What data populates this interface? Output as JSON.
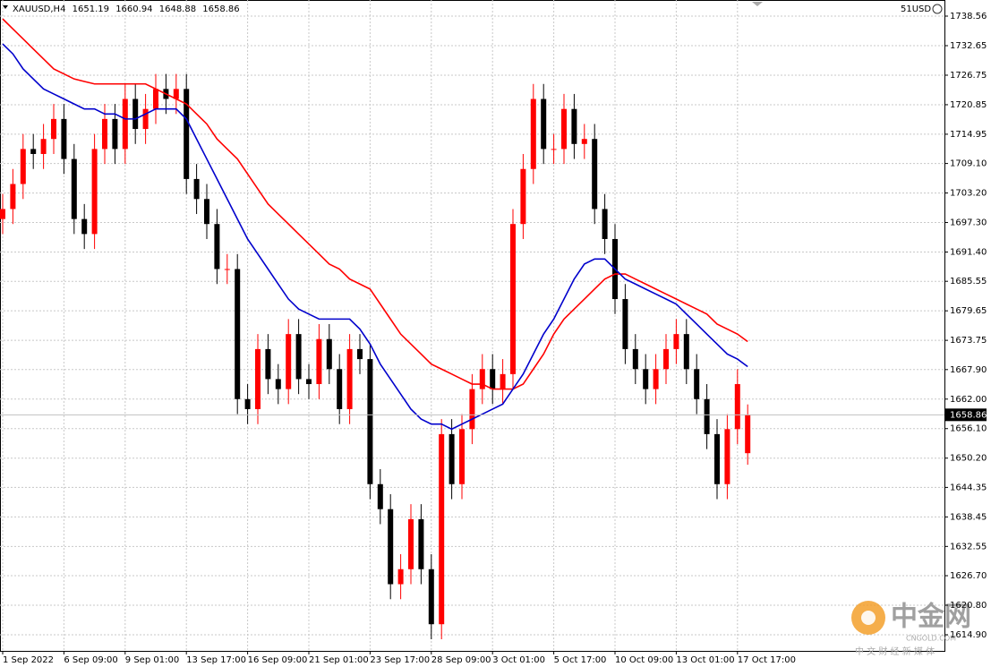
{
  "chart_data": {
    "type": "candlestick",
    "symbol": "XAUUSD,H4",
    "account": "51USD",
    "categories": [
      "1 Sep 2022",
      null,
      null,
      null,
      null,
      null,
      "6 Sep 09:00",
      null,
      null,
      null,
      null,
      null,
      "9 Sep 01:00",
      null,
      null,
      null,
      null,
      null,
      "13 Sep 17:00",
      null,
      null,
      null,
      null,
      null,
      "16 Sep 09:00",
      null,
      null,
      null,
      null,
      null,
      "21 Sep 01:00",
      null,
      null,
      null,
      null,
      null,
      "23 Sep 17:00",
      null,
      null,
      null,
      null,
      null,
      "28 Sep 09:00",
      null,
      null,
      null,
      null,
      null,
      "3 Oct 01:00",
      null,
      null,
      null,
      null,
      null,
      "5 Oct 17:00",
      null,
      null,
      null,
      null,
      null,
      "10 Oct 09:00",
      null,
      null,
      null,
      null,
      null,
      "13 Oct 01:00",
      null,
      null,
      null,
      null,
      null,
      "17 Oct 17:00",
      null
    ],
    "open": [
      1698,
      1700,
      1705,
      1712,
      1711,
      1714,
      1718,
      1710,
      1698,
      1695,
      1712,
      1718,
      1712,
      1722,
      1716,
      1720,
      1724,
      1722,
      1724,
      1706,
      1702,
      1697,
      1688,
      1688,
      1662,
      1660,
      1672,
      1666,
      1664,
      1675,
      1666,
      1665,
      1674,
      1668,
      1660,
      1672,
      1670,
      1645,
      1640,
      1625,
      1628,
      1638,
      1628,
      1617,
      1655,
      1645,
      1656,
      1664,
      1668,
      1664,
      1667,
      1697,
      1708,
      1722,
      1712,
      1712,
      1720,
      1713,
      1714,
      1700,
      1694,
      1682,
      1672,
      1668,
      1664,
      1668,
      1672,
      1675,
      1668,
      1662,
      1655,
      1645,
      1656,
      1651.19
    ],
    "high": [
      1703,
      1708,
      1715,
      1715,
      1717,
      1721,
      1721,
      1713,
      1701,
      1715,
      1721,
      1721,
      1725,
      1725,
      1723,
      1727,
      1727,
      1727,
      1727,
      1709,
      1705,
      1700,
      1691,
      1691,
      1665,
      1675,
      1675,
      1669,
      1678,
      1678,
      1669,
      1677,
      1677,
      1671,
      1675,
      1675,
      1673,
      1648,
      1643,
      1631,
      1641,
      1641,
      1631,
      1658,
      1658,
      1659,
      1667,
      1671,
      1671,
      1670,
      1700,
      1711,
      1725,
      1725,
      1715,
      1723,
      1723,
      1717,
      1717,
      1703,
      1697,
      1685,
      1675,
      1671,
      1671,
      1675,
      1678,
      1678,
      1671,
      1665,
      1658,
      1659,
      1668,
      1660.94
    ],
    "low": [
      1695,
      1697,
      1702,
      1708,
      1708,
      1711,
      1707,
      1695,
      1692,
      1692,
      1709,
      1709,
      1709,
      1713,
      1713,
      1717,
      1719,
      1719,
      1703,
      1699,
      1694,
      1685,
      1685,
      1659,
      1657,
      1657,
      1663,
      1661,
      1661,
      1663,
      1662,
      1662,
      1665,
      1657,
      1657,
      1667,
      1642,
      1637,
      1622,
      1622,
      1625,
      1625,
      1614,
      1614,
      1642,
      1642,
      1653,
      1661,
      1661,
      1661,
      1664,
      1694,
      1705,
      1709,
      1709,
      1709,
      1710,
      1710,
      1697,
      1691,
      1679,
      1669,
      1665,
      1661,
      1661,
      1665,
      1669,
      1665,
      1659,
      1652,
      1642,
      1642,
      1653,
      1648.88
    ],
    "close": [
      1700,
      1705,
      1712,
      1711,
      1714,
      1718,
      1710,
      1698,
      1695,
      1712,
      1718,
      1712,
      1722,
      1716,
      1720,
      1724,
      1722,
      1724,
      1706,
      1702,
      1697,
      1688,
      1688,
      1662,
      1660,
      1672,
      1666,
      1664,
      1675,
      1666,
      1665,
      1674,
      1668,
      1660,
      1672,
      1670,
      1645,
      1640,
      1625,
      1628,
      1638,
      1628,
      1617,
      1655,
      1645,
      1656,
      1664,
      1668,
      1664,
      1667,
      1697,
      1708,
      1722,
      1712,
      1712,
      1720,
      1713,
      1714,
      1700,
      1694,
      1682,
      1672,
      1668,
      1664,
      1668,
      1672,
      1675,
      1668,
      1662,
      1655,
      1645,
      1656,
      1665,
      1658.86
    ],
    "up_color": "#ff0000",
    "down_color": "#000000",
    "moving_averages": [
      {
        "color": "#ff0000",
        "values": [
          1738,
          1736,
          1734,
          1732,
          1730,
          1728,
          1727,
          1726,
          1725.5,
          1725,
          1725,
          1725,
          1725,
          1725,
          1725,
          1724,
          1723,
          1722,
          1721,
          1719,
          1717,
          1714,
          1712,
          1710,
          1707,
          1704,
          1701,
          1699,
          1697,
          1695,
          1693,
          1691,
          1689,
          1688,
          1686,
          1685,
          1684,
          1681,
          1678,
          1675,
          1673,
          1671,
          1669,
          1668,
          1667,
          1666,
          1665,
          1665,
          1664,
          1664,
          1664,
          1665,
          1668,
          1671,
          1675,
          1678,
          1680,
          1682,
          1684,
          1686,
          1687,
          1687,
          1686,
          1685,
          1684,
          1683,
          1682,
          1681,
          1680,
          1679,
          1677,
          1676,
          1675,
          1673.5
        ]
      },
      {
        "color": "#0000cc",
        "values": [
          1733,
          1731,
          1728,
          1726,
          1724,
          1723,
          1722,
          1721,
          1720,
          1720,
          1719,
          1719,
          1718,
          1718,
          1719,
          1720,
          1720,
          1720,
          1718,
          1714,
          1710,
          1706,
          1702,
          1698,
          1694,
          1691,
          1688,
          1685,
          1682,
          1680,
          1679,
          1678,
          1678,
          1678,
          1678,
          1676,
          1673,
          1669,
          1666,
          1663,
          1660,
          1658,
          1657,
          1657,
          1656,
          1657,
          1658,
          1659,
          1660,
          1661,
          1664,
          1667,
          1671,
          1675,
          1678,
          1682,
          1686,
          1689,
          1690,
          1690,
          1688,
          1686,
          1685,
          1684,
          1683,
          1682,
          1681,
          1679,
          1677,
          1675,
          1673,
          1671,
          1670,
          1668.5
        ]
      }
    ],
    "ylim": [
      1611.67,
      1741.78
    ],
    "yticks": [
      1738.56,
      1732.65,
      1726.75,
      1720.85,
      1714.95,
      {
        "value": 1709.1,
        "label": "1709.10"
      },
      {
        "value": 1703.2,
        "label": "1703.20"
      },
      {
        "value": 1697.3,
        "label": "1697.30"
      },
      {
        "value": 1691.4,
        "label": "1691.40"
      },
      1685.55,
      1679.65,
      1673.75,
      {
        "value": 1667.9,
        "label": "1667.90"
      },
      {
        "value": 1662,
        "label": "1662.00"
      },
      {
        "value": 1656.1,
        "label": "1656.10"
      },
      {
        "value": 1650.2,
        "label": "1650.20"
      },
      1644.35,
      1638.45,
      1632.55,
      {
        "value": 1626.7,
        "label": "1626.70"
      },
      {
        "value": 1620.8,
        "label": "1620.80"
      },
      {
        "value": 1614.9,
        "label": "1614.90"
      }
    ],
    "grid": true
  },
  "watermark": {
    "name": "中金网",
    "site": "CNGOLD.COM",
    "slogan": "中 文 财 经 新 媒 体"
  }
}
